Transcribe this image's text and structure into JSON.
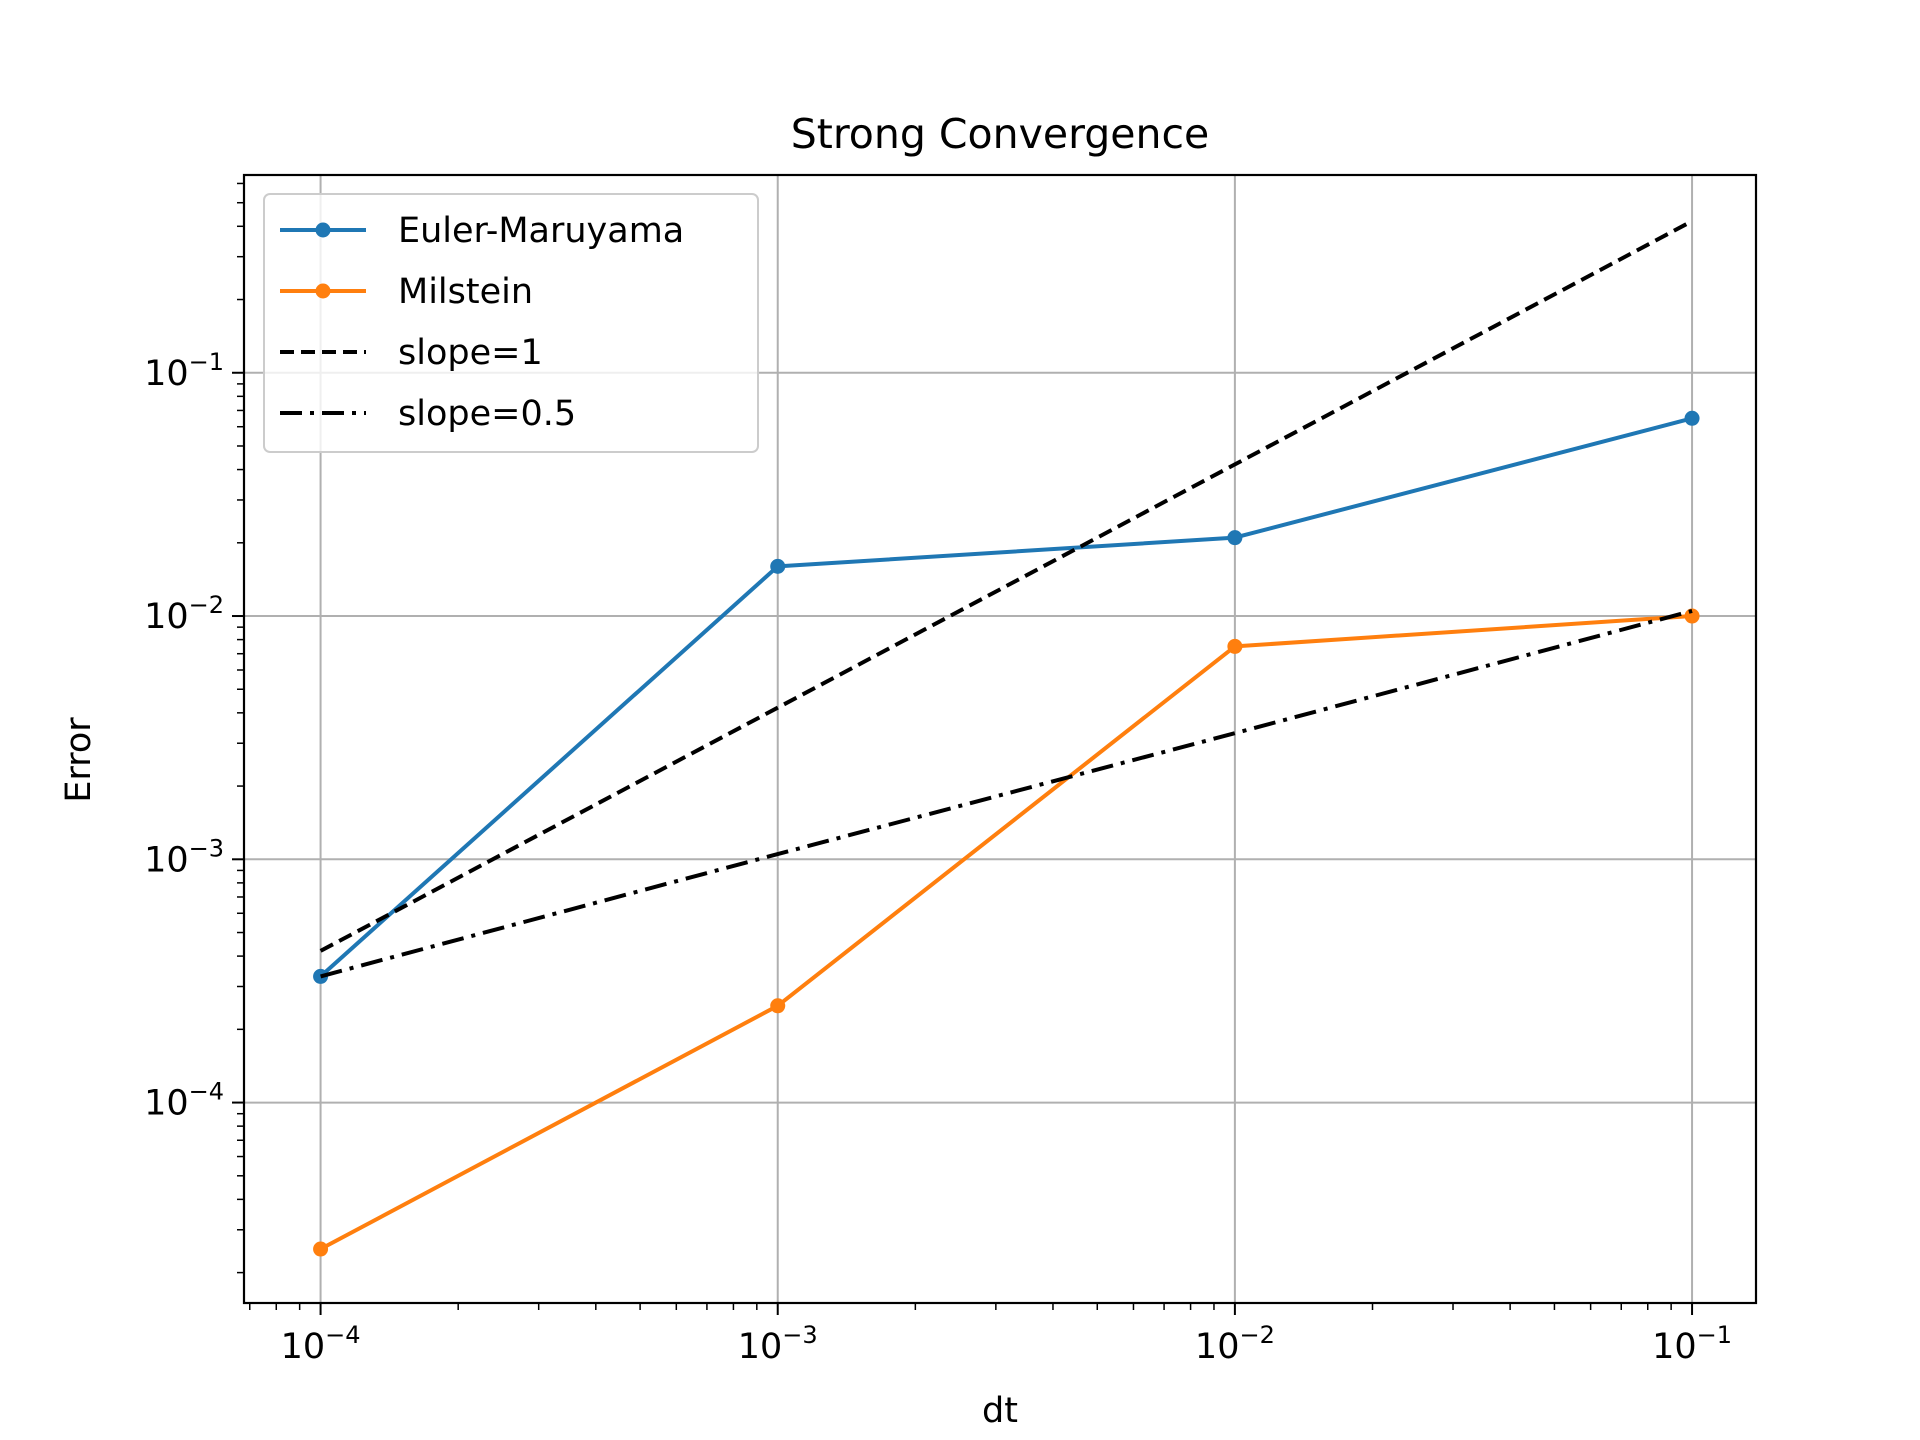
{
  "chart_data": {
    "type": "line",
    "title": "Strong Convergence",
    "xlabel": "dt",
    "ylabel": "Error",
    "xscale": "log",
    "yscale": "log",
    "xlim": [
      6.8e-05,
      0.138
    ],
    "ylim": [
      1.5e-05,
      0.65
    ],
    "grid": true,
    "legend_position": "top-left",
    "x_ticks": [
      {
        "value": 0.0001,
        "base": "10",
        "exp": "−4"
      },
      {
        "value": 0.001,
        "base": "10",
        "exp": "−3"
      },
      {
        "value": 0.01,
        "base": "10",
        "exp": "−2"
      },
      {
        "value": 0.1,
        "base": "10",
        "exp": "−1"
      }
    ],
    "y_ticks": [
      {
        "value": 0.0001,
        "base": "10",
        "exp": "−4"
      },
      {
        "value": 0.001,
        "base": "10",
        "exp": "−3"
      },
      {
        "value": 0.01,
        "base": "10",
        "exp": "−2"
      },
      {
        "value": 0.1,
        "base": "10",
        "exp": "−1"
      }
    ],
    "x": [
      0.0001,
      0.001,
      0.01,
      0.1
    ],
    "series": [
      {
        "name": "Euler-Maruyama",
        "color": "#1f77b4",
        "style": "solid",
        "marker": true,
        "values": [
          0.00033,
          0.016,
          0.021,
          0.065
        ]
      },
      {
        "name": "Milstein",
        "color": "#ff7f0e",
        "style": "solid",
        "marker": true,
        "values": [
          2.5e-05,
          0.00025,
          0.0075,
          0.01
        ]
      },
      {
        "name": "slope=1",
        "color": "#000000",
        "style": "dashed",
        "marker": false,
        "values": [
          0.00042,
          0.0042,
          0.042,
          0.42
        ]
      },
      {
        "name": "slope=0.5",
        "color": "#000000",
        "style": "dashdot",
        "marker": false,
        "values": [
          0.00033,
          0.00105,
          0.0033,
          0.0105
        ]
      }
    ]
  }
}
